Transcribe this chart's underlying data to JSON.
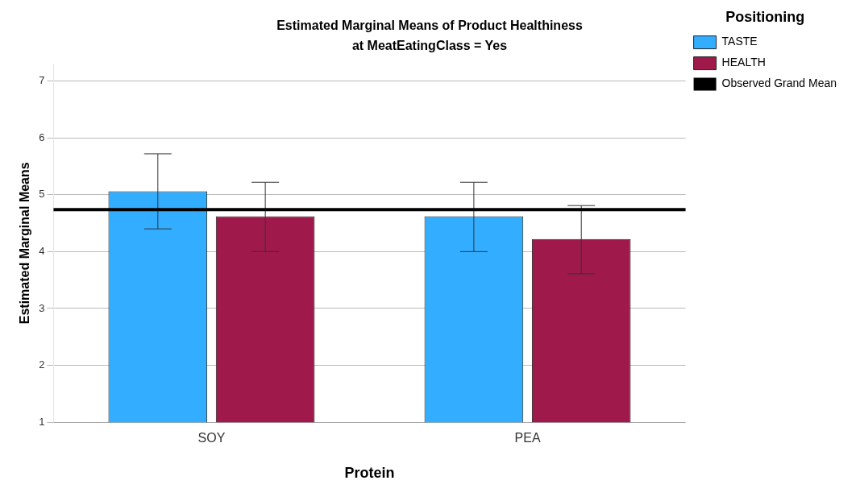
{
  "chart_data": {
    "type": "bar",
    "title": "Estimated Marginal Means of Product Healthiness",
    "subtitle": "at MeatEatingClass = Yes",
    "xlabel": "Protein",
    "ylabel": "Estimated Marginal Means",
    "legend_title": "Positioning",
    "categories": [
      "SOY",
      "PEA"
    ],
    "series": [
      {
        "name": "TASTE",
        "color": "#33adff",
        "values": [
          5.06,
          4.62
        ],
        "errors": [
          [
            4.4,
            5.72
          ],
          [
            4.0,
            5.22
          ]
        ]
      },
      {
        "name": "HEALTH",
        "color": "#a0194b",
        "values": [
          4.62,
          4.22
        ],
        "errors": [
          [
            4.0,
            5.22
          ],
          [
            3.61,
            4.81
          ]
        ]
      }
    ],
    "ref_lines": [
      {
        "axis": "y",
        "value": 4.74,
        "label": "Observed Grand Mean",
        "color": "#000000"
      }
    ],
    "ylim": [
      1,
      7.3
    ],
    "yticks": [
      1,
      2,
      3,
      4,
      5,
      6,
      7
    ],
    "grid": "y",
    "legend": "right"
  }
}
